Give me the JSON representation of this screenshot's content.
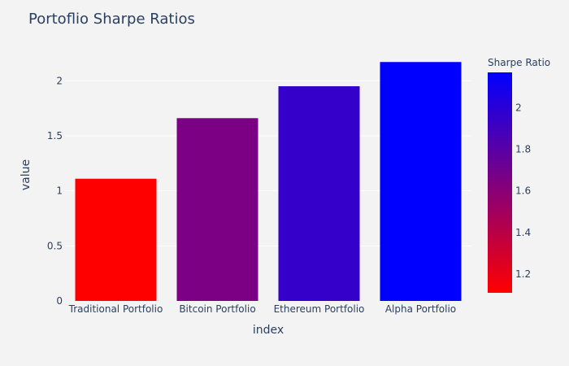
{
  "chart_data": {
    "type": "bar",
    "title": "Portoflio Sharpe Ratios",
    "xlabel": "index",
    "ylabel": "value",
    "categories": [
      "Traditional Portfolio",
      "Bitcoin Portfolio",
      "Ethereum Portfolio",
      "Alpha Portfolio"
    ],
    "values": [
      1.11,
      1.66,
      1.95,
      2.17
    ],
    "ylim": [
      0,
      2.29
    ],
    "yticks": [
      0,
      0.5,
      1,
      1.5,
      2
    ],
    "grid": true,
    "legend": "none",
    "colorbar": {
      "title": "Sharpe Ratio",
      "range": [
        1.11,
        2.17
      ],
      "ticks": [
        1.2,
        1.4,
        1.6,
        1.8,
        2
      ],
      "colorscale": [
        "#ff0000",
        "#0000ff"
      ],
      "placement": "right"
    },
    "colors": {
      "background": "#f3f3f3",
      "grid": "#ffffff",
      "text": "#2a3f5f"
    }
  }
}
